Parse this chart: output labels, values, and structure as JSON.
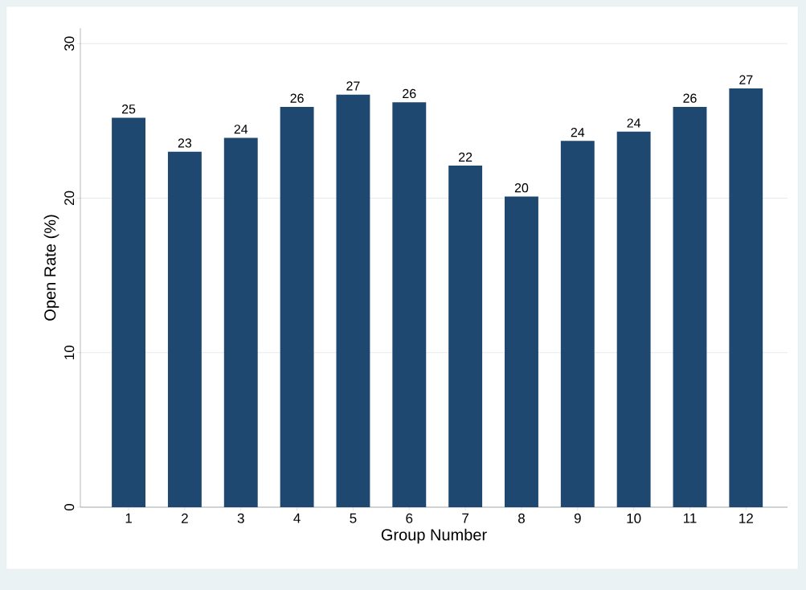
{
  "chart_data": {
    "type": "bar",
    "xlabel": "Group Number",
    "ylabel": "Open Rate (%)",
    "categories": [
      "1",
      "2",
      "3",
      "4",
      "5",
      "6",
      "7",
      "8",
      "9",
      "10",
      "11",
      "12"
    ],
    "values": [
      25.2,
      23.0,
      23.9,
      25.9,
      26.7,
      26.2,
      22.1,
      20.1,
      23.7,
      24.3,
      25.9,
      27.1
    ],
    "value_labels": [
      "25",
      "23",
      "24",
      "26",
      "27",
      "26",
      "22",
      "20",
      "24",
      "24",
      "26",
      "27"
    ],
    "color": "#1f4870",
    "ylim": [
      0,
      31
    ],
    "yticks": [
      0,
      10,
      20,
      30
    ],
    "grid": "y"
  }
}
